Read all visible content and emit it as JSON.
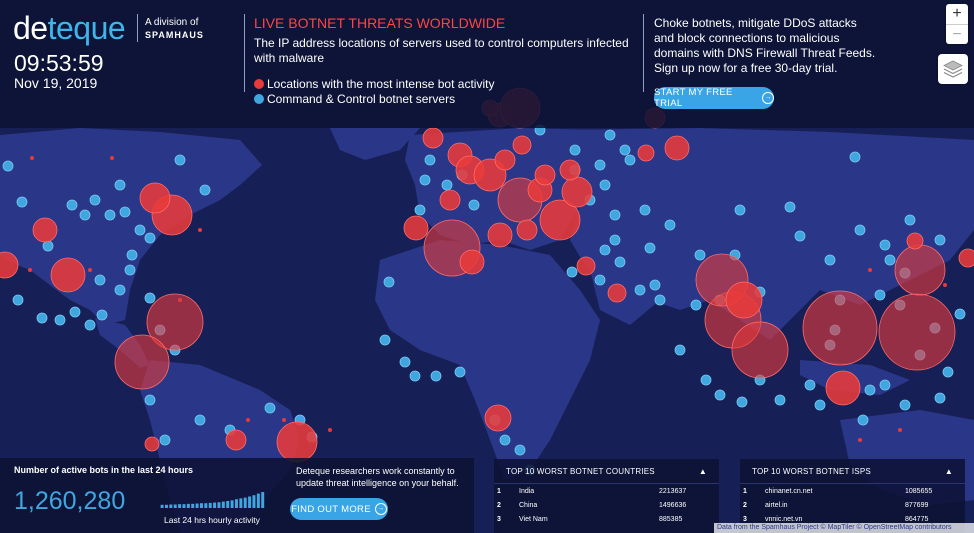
{
  "brand": {
    "logo_left": "de",
    "logo_right": "teque",
    "division_line": "A division of",
    "parent": "SPAMHAUS"
  },
  "clock": {
    "time": "09:53:59",
    "date": "Nov 19, 2019"
  },
  "threat": {
    "title": "LIVE BOTNET THREATS WORLDWIDE",
    "description": "The IP address locations of servers used to control computers infected with malware",
    "legend": [
      {
        "label": "Locations with the most intense bot activity",
        "color": "#e83a3a"
      },
      {
        "label": "Command & Control botnet servers",
        "color": "#3fa6e0"
      }
    ]
  },
  "cta": {
    "text": "Choke botnets, mitigate DDoS attacks and block connections to malicious domains with DNS Firewall Threat Feeds. Sign up now for a free 30-day trial.",
    "button": "START MY FREE TRIAL"
  },
  "map_controls": {
    "zoom_in": "+",
    "zoom_out": "−",
    "layers_icon": "layers-icon"
  },
  "bots": {
    "title": "Number of active bots in the last 24 hours",
    "count": "1,260,280",
    "activity_label": "Last 24 hrs hourly activity",
    "hourly_activity": [
      0.2,
      0.2,
      0.22,
      0.22,
      0.24,
      0.24,
      0.26,
      0.26,
      0.28,
      0.3,
      0.3,
      0.32,
      0.34,
      0.36,
      0.4,
      0.44,
      0.48,
      0.55,
      0.6,
      0.65,
      0.72,
      0.8,
      0.9,
      1.0
    ],
    "research_text": "Deteque researchers work constantly to update threat intelligence on your behalf.",
    "button": "FIND OUT MORE"
  },
  "countries": {
    "title": "TOP 10 WORST BOTNET COUNTRIES",
    "rows": [
      {
        "rank": "1",
        "name": "India",
        "value": "2213637"
      },
      {
        "rank": "2",
        "name": "China",
        "value": "1496636"
      },
      {
        "rank": "3",
        "name": "Viet Nam",
        "value": "885385"
      }
    ]
  },
  "isps": {
    "title": "TOP 10 WORST BOTNET ISPS",
    "rows": [
      {
        "rank": "1",
        "name": "chinanet.cn.net",
        "value": "1085655"
      },
      {
        "rank": "2",
        "name": "airtel.in",
        "value": "877699"
      },
      {
        "rank": "3",
        "name": "vnnic.net.vn",
        "value": "864775"
      }
    ]
  },
  "attribution": "Data from the Spamhaus Project © MapTiler © OpenStreetMap contributors",
  "colors": {
    "ocean": "#172056",
    "land": "#2a3788",
    "bot": "#e83a3a",
    "cc": "#3fa6e0",
    "accent": "#3aa5e6"
  }
}
